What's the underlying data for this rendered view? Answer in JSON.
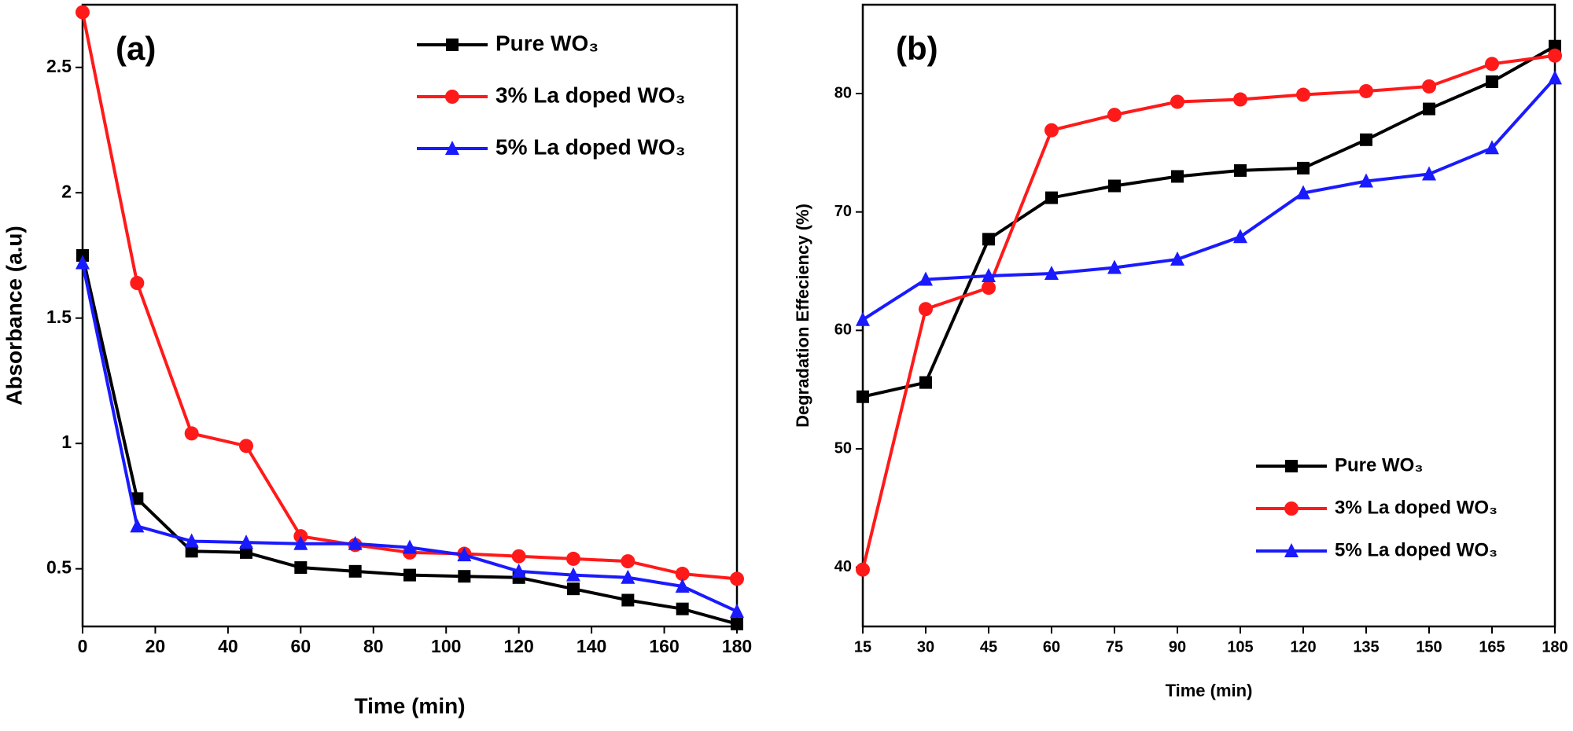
{
  "chart_data": [
    {
      "type": "line",
      "annotation": "(a)",
      "xlabel": "Time (min)",
      "ylabel": "Absorbance (a.u)",
      "x": [
        0,
        15,
        30,
        45,
        60,
        75,
        90,
        105,
        120,
        135,
        150,
        165,
        180
      ],
      "xlim": [
        0,
        180
      ],
      "xticks": [
        0,
        20,
        40,
        60,
        80,
        100,
        120,
        140,
        160,
        180
      ],
      "ylim": [
        0.27,
        2.75
      ],
      "yticks": [
        0.5,
        1.0,
        1.5,
        2.0,
        2.5
      ],
      "legend": "upper right",
      "series": [
        {
          "name": "Pure WO₃",
          "color": "#000000",
          "marker": "square",
          "values": [
            1.75,
            0.78,
            0.57,
            0.565,
            0.505,
            0.49,
            0.475,
            0.47,
            0.465,
            0.42,
            0.375,
            0.34,
            0.28
          ]
        },
        {
          "name": "3% La doped WO₃",
          "color": "#ff1a1a",
          "marker": "circle",
          "values": [
            2.72,
            1.64,
            1.04,
            0.99,
            0.63,
            0.595,
            0.565,
            0.56,
            0.55,
            0.54,
            0.53,
            0.48,
            0.46
          ]
        },
        {
          "name": "5% La doped WO₃",
          "color": "#1a1aff",
          "marker": "triangle",
          "values": [
            1.72,
            0.67,
            0.61,
            0.605,
            0.6,
            0.6,
            0.585,
            0.555,
            0.49,
            0.475,
            0.465,
            0.43,
            0.33
          ]
        }
      ]
    },
    {
      "type": "line",
      "annotation": "(b)",
      "xlabel": "Time (min)",
      "ylabel": "Degradation Effeciency (%)",
      "x": [
        15,
        30,
        45,
        60,
        75,
        90,
        105,
        120,
        135,
        150,
        165,
        180
      ],
      "xlim": [
        15,
        180
      ],
      "xticks": [
        15,
        30,
        45,
        60,
        75,
        90,
        105,
        120,
        135,
        150,
        165,
        180
      ],
      "ylim": [
        35,
        87.5
      ],
      "yticks": [
        40,
        50,
        60,
        70,
        80
      ],
      "legend": "lower right",
      "series": [
        {
          "name": "Pure WO₃",
          "color": "#000000",
          "marker": "square",
          "values": [
            54.4,
            55.6,
            67.7,
            71.2,
            72.2,
            73.0,
            73.5,
            73.7,
            76.1,
            78.7,
            81.0,
            84.0
          ]
        },
        {
          "name": "3% La doped WO₃",
          "color": "#ff1a1a",
          "marker": "circle",
          "values": [
            39.8,
            61.8,
            63.6,
            76.9,
            78.2,
            79.3,
            79.5,
            79.9,
            80.2,
            80.6,
            82.5,
            83.2
          ]
        },
        {
          "name": "5% La doped WO₃",
          "color": "#1a1aff",
          "marker": "triangle",
          "values": [
            60.9,
            64.3,
            64.6,
            64.8,
            65.3,
            66.0,
            67.9,
            71.6,
            72.6,
            73.2,
            75.4,
            81.3
          ]
        }
      ]
    }
  ]
}
